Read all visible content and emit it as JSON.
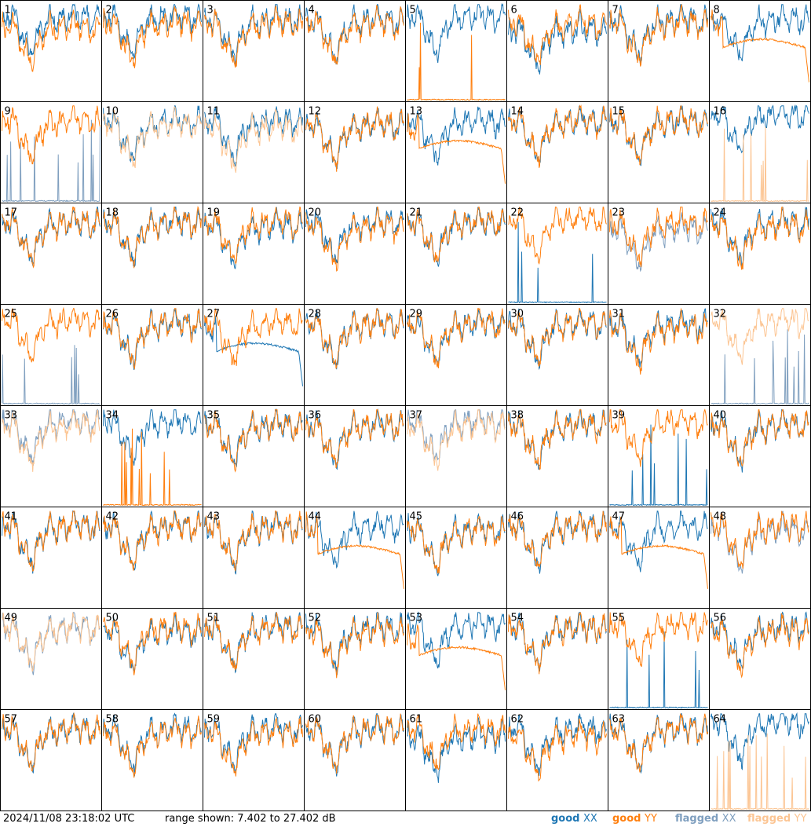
{
  "footer": {
    "timestamp": "2024/11/08 23:18:02 UTC",
    "range_text": "range shown: 7.402 to 27.402 dB"
  },
  "legend": [
    {
      "key": "good_xx",
      "label": "good ",
      "pol": "XX",
      "color": "#1f77b4"
    },
    {
      "key": "good_yy",
      "label": "good ",
      "pol": "YY",
      "color": "#ff7f0e"
    },
    {
      "key": "flagged_xx",
      "label": "flagged ",
      "pol": "XX",
      "color": "#7f9fbf"
    },
    {
      "key": "flagged_yy",
      "label": "flagged ",
      "pol": "YY",
      "color": "#fcc593"
    }
  ],
  "chart_data": {
    "type": "line",
    "layout": "small-multiples 8x8",
    "y_range_db": [
      7.402,
      27.402
    ],
    "panels": [
      {
        "n": "1",
        "xx": "good",
        "yy": "good",
        "xxs": "n",
        "yys": "n",
        "xxl": 2,
        "yyl": -1
      },
      {
        "n": "2",
        "xx": "good",
        "yy": "good",
        "xxs": "n",
        "yys": "n",
        "xxl": 2,
        "yyl": 0
      },
      {
        "n": "3",
        "xx": "good",
        "yy": "good",
        "xxs": "n",
        "yys": "n",
        "xxl": 1,
        "yyl": 0
      },
      {
        "n": "4",
        "xx": "good",
        "yy": "good",
        "xxs": "n",
        "yys": "n",
        "xxl": 1,
        "yyl": 0
      },
      {
        "n": "5",
        "xx": "good",
        "yy": "good",
        "xxs": "n",
        "yys": "s",
        "xxl": 2,
        "yyl": 0
      },
      {
        "n": "6",
        "xx": "good",
        "yy": "good",
        "xxs": "n",
        "yys": "n",
        "xxl": -2,
        "yyl": 0
      },
      {
        "n": "7",
        "xx": "good",
        "yy": "good",
        "xxs": "n",
        "yys": "n",
        "xxl": 1,
        "yyl": 0
      },
      {
        "n": "8",
        "xx": "good",
        "yy": "good",
        "xxs": "n",
        "yys": "f",
        "xxl": 1,
        "yyl": 0
      },
      {
        "n": "9",
        "xx": "flagged",
        "yy": "good",
        "xxs": "s",
        "yys": "n",
        "xxl": 0,
        "yyl": 1
      },
      {
        "n": "10",
        "xx": "good",
        "yy": "flagged",
        "xxs": "n",
        "yys": "n",
        "xxl": 1,
        "yyl": 0
      },
      {
        "n": "11",
        "xx": "good",
        "yy": "flagged",
        "xxs": "n",
        "yys": "n",
        "xxl": 1,
        "yyl": -1
      },
      {
        "n": "12",
        "xx": "good",
        "yy": "good",
        "xxs": "n",
        "yys": "n",
        "xxl": 0,
        "yyl": 0
      },
      {
        "n": "13",
        "xx": "good",
        "yy": "good",
        "xxs": "n",
        "yys": "f",
        "xxl": 1,
        "yyl": -1
      },
      {
        "n": "14",
        "xx": "good",
        "yy": "good",
        "xxs": "n",
        "yys": "n",
        "xxl": 1,
        "yyl": 1
      },
      {
        "n": "15",
        "xx": "good",
        "yy": "good",
        "xxs": "n",
        "yys": "n",
        "xxl": 1,
        "yyl": 1
      },
      {
        "n": "16",
        "xx": "good",
        "yy": "flagged",
        "xxs": "n",
        "yys": "s",
        "xxl": 3,
        "yyl": 0
      },
      {
        "n": "17",
        "xx": "good",
        "yy": "good",
        "xxs": "n",
        "yys": "n",
        "xxl": 1,
        "yyl": 1
      },
      {
        "n": "18",
        "xx": "good",
        "yy": "good",
        "xxs": "n",
        "yys": "n",
        "xxl": 1,
        "yyl": 1
      },
      {
        "n": "19",
        "xx": "good",
        "yy": "good",
        "xxs": "n",
        "yys": "n",
        "xxl": 0,
        "yyl": 1
      },
      {
        "n": "20",
        "xx": "good",
        "yy": "good",
        "xxs": "n",
        "yys": "n",
        "xxl": 1,
        "yyl": 0
      },
      {
        "n": "21",
        "xx": "good",
        "yy": "good",
        "xxs": "n",
        "yys": "n",
        "xxl": 1,
        "yyl": 1
      },
      {
        "n": "22",
        "xx": "good",
        "yy": "good",
        "xxs": "s",
        "yys": "n",
        "xxl": 0,
        "yyl": 2
      },
      {
        "n": "23",
        "xx": "flagged",
        "yy": "good",
        "xxs": "n",
        "yys": "n",
        "xxl": -1,
        "yyl": 1
      },
      {
        "n": "24",
        "xx": "good",
        "yy": "good",
        "xxs": "n",
        "yys": "n",
        "xxl": 1,
        "yyl": 0
      },
      {
        "n": "25",
        "xx": "flagged",
        "yy": "good",
        "xxs": "s",
        "yys": "n",
        "xxl": 0,
        "yyl": 2
      },
      {
        "n": "26",
        "xx": "good",
        "yy": "good",
        "xxs": "n",
        "yys": "n",
        "xxl": 1,
        "yyl": 1
      },
      {
        "n": "27",
        "xx": "good",
        "yy": "good",
        "xxs": "f",
        "yys": "n",
        "xxl": -1,
        "yyl": 1
      },
      {
        "n": "28",
        "xx": "good",
        "yy": "good",
        "xxs": "n",
        "yys": "n",
        "xxl": 1,
        "yyl": 1
      },
      {
        "n": "29",
        "xx": "good",
        "yy": "good",
        "xxs": "n",
        "yys": "n",
        "xxl": 1,
        "yyl": 1
      },
      {
        "n": "30",
        "xx": "good",
        "yy": "good",
        "xxs": "n",
        "yys": "n",
        "xxl": 1,
        "yyl": 1
      },
      {
        "n": "31",
        "xx": "good",
        "yy": "good",
        "xxs": "n",
        "yys": "n",
        "xxl": 1,
        "yyl": 0
      },
      {
        "n": "32",
        "xx": "flagged",
        "yy": "flagged",
        "xxs": "s",
        "yys": "n",
        "xxl": 0,
        "yyl": 2
      },
      {
        "n": "33",
        "xx": "flagged",
        "yy": "flagged",
        "xxs": "n",
        "yys": "n",
        "xxl": 2,
        "yyl": 1
      },
      {
        "n": "34",
        "xx": "good",
        "yy": "good",
        "xxs": "n",
        "yys": "s",
        "xxl": 2,
        "yyl": 0
      },
      {
        "n": "35",
        "xx": "good",
        "yy": "good",
        "xxs": "n",
        "yys": "n",
        "xxl": 1,
        "yyl": 1
      },
      {
        "n": "36",
        "xx": "good",
        "yy": "good",
        "xxs": "n",
        "yys": "n",
        "xxl": 1,
        "yyl": 1
      },
      {
        "n": "37",
        "xx": "flagged",
        "yy": "flagged",
        "xxs": "n",
        "yys": "n",
        "xxl": 2,
        "yyl": 1
      },
      {
        "n": "38",
        "xx": "good",
        "yy": "good",
        "xxs": "n",
        "yys": "n",
        "xxl": 1,
        "yyl": 1
      },
      {
        "n": "39",
        "xx": "good",
        "yy": "good",
        "xxs": "s",
        "yys": "n",
        "xxl": 0,
        "yyl": 2
      },
      {
        "n": "40",
        "xx": "good",
        "yy": "good",
        "xxs": "n",
        "yys": "n",
        "xxl": 1,
        "yyl": 1
      },
      {
        "n": "41",
        "xx": "good",
        "yy": "good",
        "xxs": "n",
        "yys": "n",
        "xxl": 1,
        "yyl": 1
      },
      {
        "n": "42",
        "xx": "good",
        "yy": "good",
        "xxs": "n",
        "yys": "n",
        "xxl": 1,
        "yyl": 1
      },
      {
        "n": "43",
        "xx": "good",
        "yy": "good",
        "xxs": "n",
        "yys": "n",
        "xxl": 1,
        "yyl": 1
      },
      {
        "n": "44",
        "xx": "good",
        "yy": "good",
        "xxs": "n",
        "yys": "f",
        "xxl": 1,
        "yyl": 0
      },
      {
        "n": "45",
        "xx": "good",
        "yy": "good",
        "xxs": "n",
        "yys": "n",
        "xxl": 0,
        "yyl": 0
      },
      {
        "n": "46",
        "xx": "good",
        "yy": "good",
        "xxs": "n",
        "yys": "n",
        "xxl": 1,
        "yyl": 1
      },
      {
        "n": "47",
        "xx": "good",
        "yy": "good",
        "xxs": "n",
        "yys": "f",
        "xxl": 1,
        "yyl": 0
      },
      {
        "n": "48",
        "xx": "flagged",
        "yy": "good",
        "xxs": "n",
        "yys": "n",
        "xxl": 0,
        "yyl": 1
      },
      {
        "n": "49",
        "xx": "flagged",
        "yy": "flagged",
        "xxs": "n",
        "yys": "n",
        "xxl": 1,
        "yyl": 1
      },
      {
        "n": "50",
        "xx": "good",
        "yy": "good",
        "xxs": "n",
        "yys": "n",
        "xxl": 0,
        "yyl": 1
      },
      {
        "n": "51",
        "xx": "good",
        "yy": "good",
        "xxs": "n",
        "yys": "n",
        "xxl": 1,
        "yyl": 1
      },
      {
        "n": "52",
        "xx": "good",
        "yy": "good",
        "xxs": "n",
        "yys": "n",
        "xxl": 1,
        "yyl": 0
      },
      {
        "n": "53",
        "xx": "good",
        "yy": "good",
        "xxs": "n",
        "yys": "f",
        "xxl": 2,
        "yyl": -2
      },
      {
        "n": "54",
        "xx": "good",
        "yy": "good",
        "xxs": "n",
        "yys": "n",
        "xxl": 1,
        "yyl": 1
      },
      {
        "n": "55",
        "xx": "good",
        "yy": "good",
        "xxs": "s",
        "yys": "n",
        "xxl": 0,
        "yyl": 2
      },
      {
        "n": "56",
        "xx": "good",
        "yy": "good",
        "xxs": "n",
        "yys": "n",
        "xxl": 1,
        "yyl": 0
      },
      {
        "n": "57",
        "xx": "good",
        "yy": "good",
        "xxs": "n",
        "yys": "n",
        "xxl": 1,
        "yyl": 1
      },
      {
        "n": "58",
        "xx": "good",
        "yy": "good",
        "xxs": "n",
        "yys": "n",
        "xxl": 1,
        "yyl": 0
      },
      {
        "n": "59",
        "xx": "good",
        "yy": "good",
        "xxs": "n",
        "yys": "n",
        "xxl": 1,
        "yyl": 0
      },
      {
        "n": "60",
        "xx": "good",
        "yy": "good",
        "xxs": "n",
        "yys": "n",
        "xxl": 1,
        "yyl": 1
      },
      {
        "n": "61",
        "xx": "good",
        "yy": "good",
        "xxs": "n",
        "yys": "n",
        "xxl": -1,
        "yyl": 1
      },
      {
        "n": "62",
        "xx": "good",
        "yy": "good",
        "xxs": "n",
        "yys": "n",
        "xxl": 1,
        "yyl": -1
      },
      {
        "n": "63",
        "xx": "good",
        "yy": "good",
        "xxs": "n",
        "yys": "n",
        "xxl": 1,
        "yyl": 1
      },
      {
        "n": "64",
        "xx": "good",
        "yy": "flagged",
        "xxs": "n",
        "yys": "s",
        "xxl": 3,
        "yyl": 0
      }
    ]
  }
}
